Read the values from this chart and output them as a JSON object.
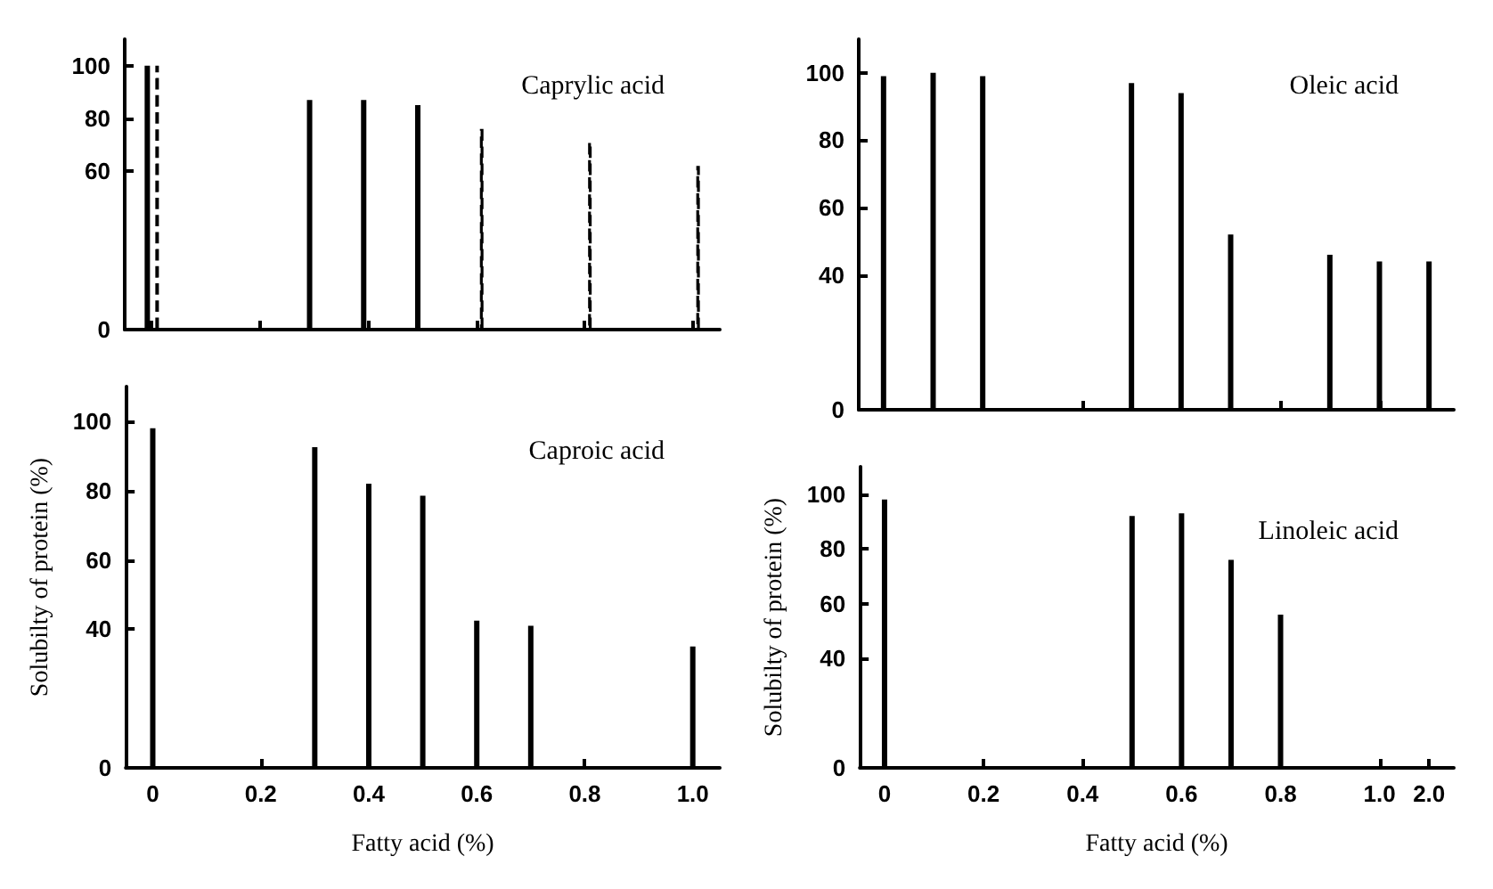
{
  "chart_data": [
    {
      "type": "bar",
      "title": "Caprylic acid",
      "categories": [
        "0",
        null,
        "0.2",
        null,
        "0.4",
        null,
        "0.6",
        null,
        "0.8",
        null,
        "1.0"
      ],
      "series": [
        {
          "color": "#000000",
          "line_style": "solid",
          "values": [
            100,
            null,
            null,
            87,
            87,
            85,
            null,
            null,
            null,
            null,
            null
          ]
        },
        {
          "color": "#000000",
          "line_style": "dashed",
          "values": [
            100,
            null,
            null,
            null,
            null,
            null,
            76,
            null,
            71.5,
            null,
            62
          ]
        }
      ],
      "ylim": [
        0,
        110
      ],
      "yticks": [
        0,
        60,
        80,
        100
      ],
      "tick_labels": "y",
      "grid": false
    },
    {
      "type": "bar",
      "title": "Oleic acid",
      "categories": [
        "0",
        null,
        "0.2",
        null,
        "0.4",
        null,
        "0.6",
        null,
        "0.8",
        null,
        "1.0",
        "2.0"
      ],
      "series": [
        {
          "color": "#000000",
          "line_style": "solid",
          "values": [
            99,
            100,
            99,
            null,
            null,
            97,
            94,
            52,
            null,
            46,
            44,
            44
          ]
        }
      ],
      "ylim": [
        0,
        110
      ],
      "yticks": [
        0,
        40,
        60,
        80,
        100
      ],
      "tick_labels": "y",
      "grid": false
    },
    {
      "type": "bar",
      "title": "Caproic acid",
      "xlabel": "Fatty acid (%)",
      "ylabel": "Solubilty of protein (%)",
      "categories": [
        "0",
        null,
        "0.2",
        null,
        "0.4",
        null,
        "0.6",
        null,
        "0.8",
        null,
        "1.0"
      ],
      "series": [
        {
          "color": "#000000",
          "line_style": "solid",
          "values": [
            98,
            null,
            null,
            92.5,
            82,
            78.5,
            42.5,
            41,
            null,
            null,
            35
          ]
        }
      ],
      "ylim": [
        0,
        110
      ],
      "yticks": [
        0,
        40,
        60,
        80,
        100
      ],
      "grid": false
    },
    {
      "type": "bar",
      "title": "Linoleic acid",
      "xlabel": "Fatty acid (%)",
      "ylabel": "Solubilty of protein (%)",
      "categories": [
        "0",
        null,
        "0.2",
        null,
        "0.4",
        null,
        "0.6",
        null,
        "0.8",
        null,
        "1.0",
        "2.0"
      ],
      "series": [
        {
          "color": "#000000",
          "line_style": "solid",
          "values": [
            98,
            null,
            null,
            null,
            null,
            92,
            93,
            76,
            56,
            null,
            null,
            null
          ]
        }
      ],
      "ylim": [
        0,
        110
      ],
      "yticks": [
        0,
        40,
        60,
        80,
        100
      ],
      "grid": false
    }
  ]
}
